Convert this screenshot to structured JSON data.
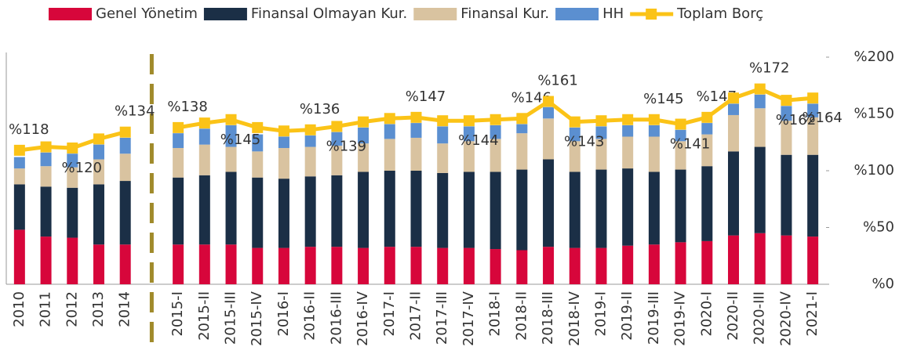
{
  "chart_data": {
    "type": "bar",
    "categories": [
      "2010",
      "2011",
      "2012",
      "2013",
      "2014",
      null,
      "2015-I",
      "2015-II",
      "2015-III",
      "2015-IV",
      "2016-I",
      "2016-II",
      "2016-III",
      "2016-IV",
      "2017-I",
      "2017-II",
      "2017-III",
      "2017-IV",
      "2018-I",
      "2018-II",
      "2018-III",
      "2018-IV",
      "2019-I",
      "2019-II",
      "2019-III",
      "2019-IV",
      "2020-I",
      "2020-II",
      "2020-III",
      "2020-IV",
      "2021-I"
    ],
    "series": [
      {
        "name": "Genel Yönetim",
        "color": "#d7063b",
        "values": [
          48,
          42,
          41,
          35,
          35,
          null,
          35,
          35,
          35,
          32,
          32,
          33,
          33,
          32,
          33,
          33,
          32,
          32,
          31,
          30,
          33,
          32,
          32,
          34,
          35,
          37,
          38,
          43,
          45,
          43,
          42
        ]
      },
      {
        "name": "Finansal Olmayan Kur.",
        "color": "#1b2f46",
        "values": [
          40,
          44,
          44,
          53,
          56,
          null,
          59,
          61,
          64,
          62,
          61,
          62,
          63,
          67,
          67,
          67,
          66,
          67,
          68,
          71,
          77,
          67,
          69,
          68,
          64,
          64,
          66,
          74,
          76,
          71,
          72
        ]
      },
      {
        "name": "Finansal Kur.",
        "color": "#d9c3a0",
        "values": [
          14,
          18,
          18,
          22,
          24,
          null,
          26,
          27,
          22,
          23,
          27,
          26,
          26,
          25,
          28,
          29,
          26,
          27,
          29,
          32,
          36,
          27,
          27,
          28,
          31,
          25,
          28,
          32,
          34,
          30,
          33
        ]
      },
      {
        "name": "HH",
        "color": "#5b8fd0",
        "values": [
          10,
          12,
          12,
          13,
          14,
          null,
          13,
          14,
          19,
          15,
          10,
          10,
          12,
          14,
          13,
          13,
          15,
          13,
          12,
          8,
          10,
          12,
          11,
          10,
          10,
          10,
          10,
          10,
          12,
          13,
          12
        ]
      },
      {
        "name": "Toplam Borç",
        "color": "#fbc317",
        "type": "line",
        "values": [
          118,
          121,
          120,
          128,
          134,
          null,
          138,
          142,
          145,
          138,
          135,
          136,
          139,
          143,
          146,
          147,
          144,
          144,
          145,
          146,
          161,
          143,
          144,
          145,
          145,
          141,
          147,
          164,
          172,
          162,
          164
        ],
        "value_labels": [
          "%118",
          null,
          "%120",
          null,
          "%134",
          null,
          "%138",
          null,
          "%145",
          null,
          null,
          "%136",
          "%139",
          null,
          null,
          "%147",
          null,
          "%144",
          null,
          "%146",
          "%161",
          "%143",
          null,
          null,
          "%145",
          "%141",
          "%147",
          null,
          "%172",
          "%162",
          "%164"
        ]
      }
    ],
    "ylim": [
      0,
      200
    ],
    "yticks": [
      {
        "value": 0,
        "label": "%0"
      },
      {
        "value": 50,
        "label": "%50"
      },
      {
        "value": 100,
        "label": "%100"
      },
      {
        "value": 150,
        "label": "%150"
      },
      {
        "value": 200,
        "label": "%200"
      }
    ],
    "grid": false,
    "legend": "top"
  }
}
